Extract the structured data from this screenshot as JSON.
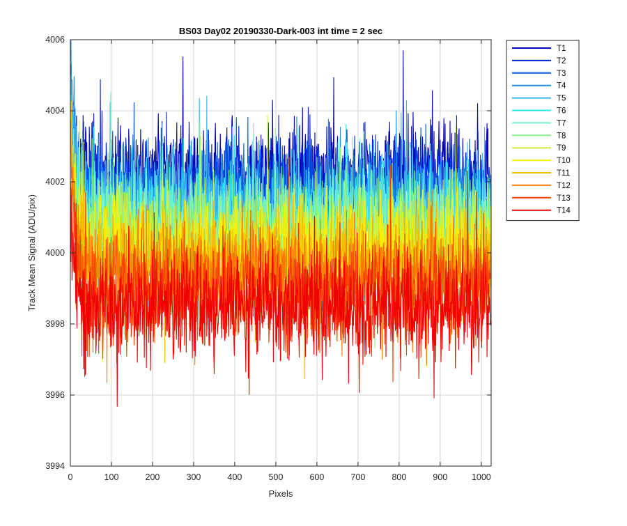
{
  "chart_data": {
    "type": "line",
    "title": "BS03 Day02 20190330-Dark-003 int time = 2 sec",
    "xlabel": "Pixels",
    "ylabel": "Track Mean Signal (ADU/pix)",
    "xlim": [
      0,
      1024
    ],
    "ylim": [
      3994,
      4006
    ],
    "xticks": [
      0,
      100,
      200,
      300,
      400,
      500,
      600,
      700,
      800,
      900,
      1000
    ],
    "yticks": [
      3994,
      3996,
      3998,
      4000,
      4002,
      4004,
      4006
    ],
    "grid": true,
    "legend_position": "outside-top-right",
    "n_points": 1024,
    "series": [
      {
        "name": "T1",
        "color": "#0000b4",
        "mean": 4002.1,
        "noise_sd": 0.75,
        "start": 4004.6
      },
      {
        "name": "T2",
        "color": "#0022d0",
        "mean": 4001.8,
        "noise_sd": 0.75,
        "start": 4004.3
      },
      {
        "name": "T3",
        "color": "#0050e8",
        "mean": 4001.6,
        "noise_sd": 0.75,
        "start": 4005.2
      },
      {
        "name": "T4",
        "color": "#1c8ce8",
        "mean": 4001.4,
        "noise_sd": 0.75,
        "start": 4005.5
      },
      {
        "name": "T5",
        "color": "#38b4f0",
        "mean": 4001.2,
        "noise_sd": 0.75,
        "start": 4004.6
      },
      {
        "name": "T6",
        "color": "#30e0f4",
        "mean": 4001.0,
        "noise_sd": 0.75,
        "start": 4004.1
      },
      {
        "name": "T7",
        "color": "#70f0d0",
        "mean": 4000.8,
        "noise_sd": 0.75,
        "start": 4003.6
      },
      {
        "name": "T8",
        "color": "#8cf08c",
        "mean": 4000.6,
        "noise_sd": 0.75,
        "start": 4003.2
      },
      {
        "name": "T9",
        "color": "#d0f040",
        "mean": 4000.3,
        "noise_sd": 0.75,
        "start": 4003.4
      },
      {
        "name": "T10",
        "color": "#f8f000",
        "mean": 4000.0,
        "noise_sd": 0.75,
        "start": 4003.0
      },
      {
        "name": "T11",
        "color": "#f8b800",
        "mean": 3999.7,
        "noise_sd": 0.75,
        "start": 4003.6
      },
      {
        "name": "T12",
        "color": "#f87800",
        "mean": 3999.3,
        "noise_sd": 0.75,
        "start": 4002.6
      },
      {
        "name": "T13",
        "color": "#f84000",
        "mean": 3998.9,
        "noise_sd": 0.75,
        "start": 4001.8
      },
      {
        "name": "T14",
        "color": "#f00000",
        "mean": 3998.5,
        "noise_sd": 0.75,
        "start": 4000.9
      }
    ]
  }
}
